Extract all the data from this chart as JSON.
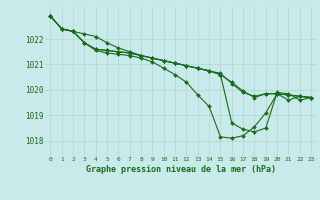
{
  "title": "Graphe pression niveau de la mer (hPa)",
  "background_color": "#c8eaea",
  "grid_color": "#b8d8d8",
  "line_color": "#1a6b1a",
  "marker_color": "#1a6b1a",
  "xlim": [
    -0.5,
    23.5
  ],
  "ylim": [
    1017.4,
    1023.3
  ],
  "yticks": [
    1018,
    1019,
    1020,
    1021,
    1022
  ],
  "xticks": [
    0,
    1,
    2,
    3,
    4,
    5,
    6,
    7,
    8,
    9,
    10,
    11,
    12,
    13,
    14,
    15,
    16,
    17,
    18,
    19,
    20,
    21,
    22,
    23
  ],
  "series": [
    [
      1022.9,
      1022.4,
      1022.3,
      1022.2,
      1022.1,
      1021.85,
      1021.65,
      1021.5,
      1021.35,
      1021.25,
      1021.15,
      1021.05,
      1020.95,
      1020.85,
      1020.75,
      1020.6,
      1020.3,
      1019.95,
      1019.7,
      1019.85,
      1019.85,
      1019.8,
      1019.75,
      1019.7
    ],
    [
      1022.9,
      1022.4,
      1022.3,
      1021.85,
      1021.55,
      1021.45,
      1021.4,
      1021.35,
      1021.25,
      1021.1,
      1020.85,
      1020.6,
      1020.3,
      1019.8,
      1019.35,
      1018.15,
      1018.1,
      1018.2,
      1018.55,
      1019.1,
      1019.85,
      1019.6,
      1019.75,
      1019.7
    ],
    [
      1022.9,
      1022.4,
      1022.3,
      1021.85,
      1021.6,
      1021.55,
      1021.5,
      1021.45,
      1021.35,
      1021.25,
      1021.15,
      1021.05,
      1020.95,
      1020.85,
      1020.75,
      1020.6,
      1018.7,
      1018.45,
      1018.35,
      1018.5,
      1019.9,
      1019.85,
      1019.6,
      1019.7
    ],
    [
      1022.9,
      1022.4,
      1022.3,
      1021.85,
      1021.6,
      1021.55,
      1021.5,
      1021.45,
      1021.35,
      1021.25,
      1021.15,
      1021.05,
      1020.95,
      1020.85,
      1020.75,
      1020.65,
      1020.25,
      1019.9,
      1019.75,
      1019.85,
      1019.85,
      1019.8,
      1019.75,
      1019.7
    ]
  ]
}
